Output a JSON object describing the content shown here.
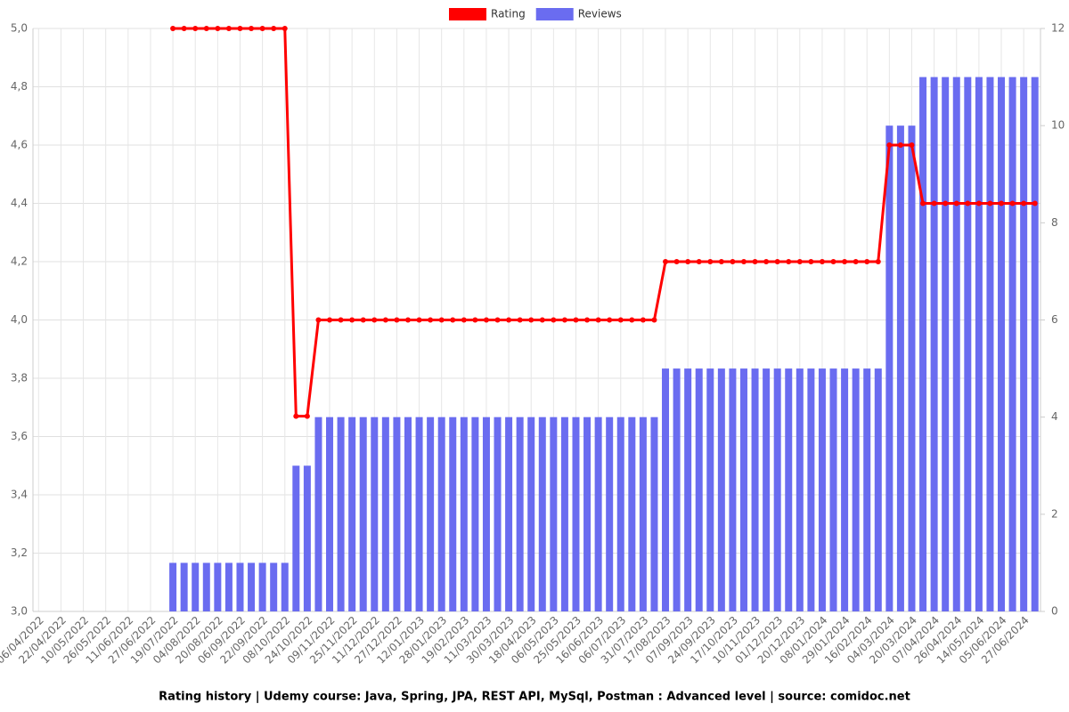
{
  "chart_data": {
    "type": "bar-line",
    "title": "Rating history | Udemy course: Java, Spring, JPA, REST API, MySql, Postman : Advanced level | source: comidoc.net",
    "categories": [
      "06/04/2022",
      null,
      "22/04/2022",
      null,
      "10/05/2022",
      null,
      "26/05/2022",
      null,
      "11/06/2022",
      null,
      "27/06/2022",
      null,
      "19/07/2022",
      null,
      "04/08/2022",
      null,
      "20/08/2022",
      null,
      "06/09/2022",
      null,
      "22/09/2022",
      null,
      "08/10/2022",
      null,
      "24/10/2022",
      null,
      "09/11/2022",
      null,
      "25/11/2022",
      null,
      "11/12/2022",
      null,
      "27/12/2022",
      null,
      "12/01/2023",
      null,
      "28/01/2023",
      null,
      "19/02/2023",
      null,
      "11/03/2023",
      null,
      "30/03/2023",
      null,
      "18/04/2023",
      null,
      "06/05/2023",
      null,
      "25/05/2023",
      null,
      "16/06/2023",
      null,
      "06/07/2023",
      null,
      "31/07/2023",
      null,
      "17/08/2023",
      null,
      "07/09/2023",
      null,
      "24/09/2023",
      null,
      "17/10/2023",
      null,
      "10/11/2023",
      null,
      "01/12/2023",
      null,
      "20/12/2023",
      null,
      "08/01/2024",
      null,
      "29/01/2024",
      null,
      "16/02/2024",
      null,
      "04/03/2024",
      null,
      "20/03/2024",
      null,
      "07/04/2024",
      null,
      "26/04/2024",
      null,
      "14/05/2024",
      null,
      "05/06/2024",
      null,
      "27/06/2024",
      null
    ],
    "series": [
      {
        "name": "Rating",
        "color": "#ff0000",
        "kind": "line",
        "values": [
          null,
          null,
          null,
          null,
          null,
          null,
          null,
          null,
          null,
          null,
          null,
          null,
          5,
          5,
          5,
          5,
          5,
          5,
          5,
          5,
          5,
          5,
          5,
          3.67,
          3.67,
          4,
          4,
          4,
          4,
          4,
          4,
          4,
          4,
          4,
          4,
          4,
          4,
          4,
          4,
          4,
          4,
          4,
          4,
          4,
          4,
          4,
          4,
          4,
          4,
          4,
          4,
          4,
          4,
          4,
          4,
          4,
          4.2,
          4.2,
          4.2,
          4.2,
          4.2,
          4.2,
          4.2,
          4.2,
          4.2,
          4.2,
          4.2,
          4.2,
          4.2,
          4.2,
          4.2,
          4.2,
          4.2,
          4.2,
          4.2,
          4.2,
          4.6,
          4.6,
          4.6,
          4.4,
          4.4,
          4.4,
          4.4,
          4.4,
          4.4,
          4.4,
          4.4,
          4.4,
          4.4,
          4.4
        ]
      },
      {
        "name": "Reviews",
        "color": "#6a6cf0",
        "kind": "bar",
        "axis": "y2",
        "values": [
          0,
          0,
          0,
          0,
          0,
          0,
          0,
          0,
          0,
          0,
          0,
          0,
          1,
          1,
          1,
          1,
          1,
          1,
          1,
          1,
          1,
          1,
          1,
          3,
          3,
          4,
          4,
          4,
          4,
          4,
          4,
          4,
          4,
          4,
          4,
          4,
          4,
          4,
          4,
          4,
          4,
          4,
          4,
          4,
          4,
          4,
          4,
          4,
          4,
          4,
          4,
          4,
          4,
          4,
          4,
          4,
          5,
          5,
          5,
          5,
          5,
          5,
          5,
          5,
          5,
          5,
          5,
          5,
          5,
          5,
          5,
          5,
          5,
          5,
          5,
          5,
          10,
          10,
          10,
          11,
          11,
          11,
          11,
          11,
          11,
          11,
          11,
          11,
          11,
          11
        ]
      }
    ],
    "ylim": [
      3,
      5
    ],
    "yticks": [
      {
        "value": 3,
        "label": "3,0"
      },
      {
        "value": 3.2,
        "label": "3,2"
      },
      {
        "value": 3.4,
        "label": "3,4"
      },
      {
        "value": 3.6,
        "label": "3,6"
      },
      {
        "value": 3.8,
        "label": "3,8"
      },
      {
        "value": 4,
        "label": "4,0"
      },
      {
        "value": 4.2,
        "label": "4,2"
      },
      {
        "value": 4.4,
        "label": "4,4"
      },
      {
        "value": 4.6,
        "label": "4,6"
      },
      {
        "value": 4.8,
        "label": "4,8"
      },
      {
        "value": 5,
        "label": "5,0"
      }
    ],
    "y2lim": [
      0,
      12
    ],
    "y2ticks": [
      0,
      2,
      4,
      6,
      8,
      10,
      12
    ],
    "grid": true,
    "legend": "top"
  }
}
